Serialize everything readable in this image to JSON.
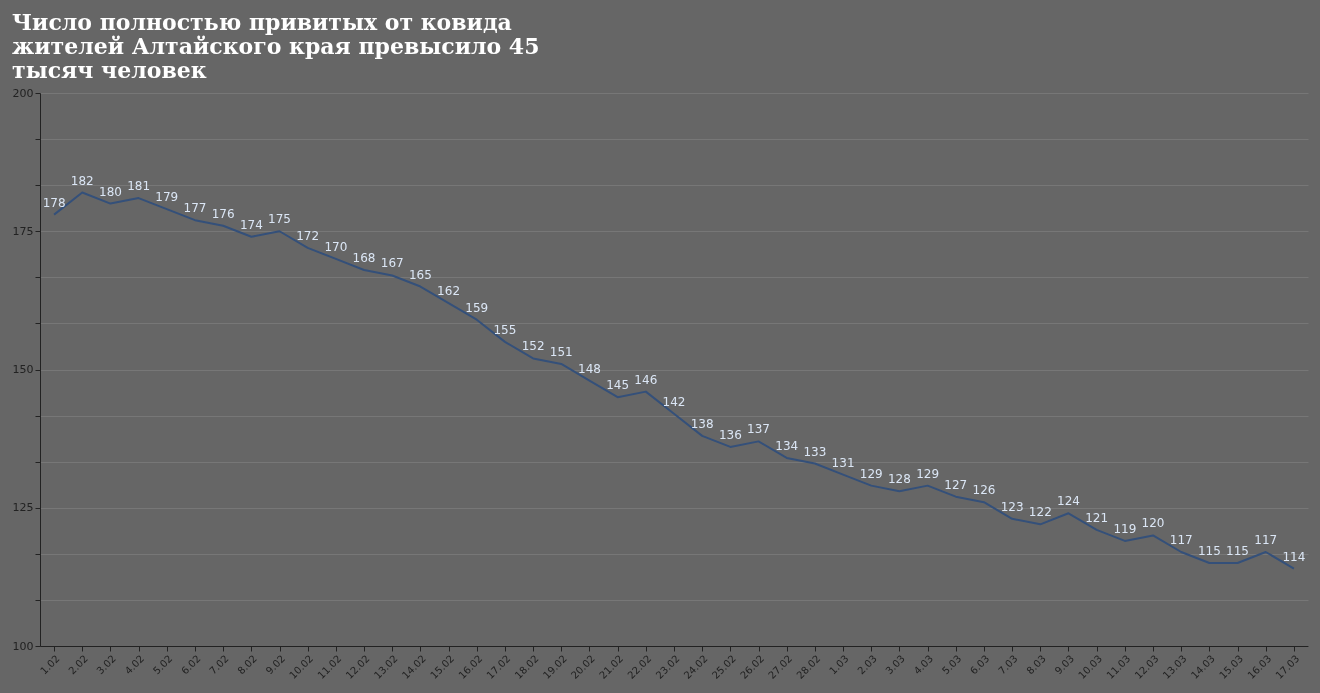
{
  "chart_data": {
    "type": "line",
    "title": [
      "Число полностью привитых от ковида",
      "жителей Алтайского края превысило 45",
      "тысяч человек"
    ],
    "categories": [
      "1.02",
      "2.02",
      "3.02",
      "4.02",
      "5.02",
      "6.02",
      "7.02",
      "8.02",
      "9.02",
      "10.02",
      "11.02",
      "12.02",
      "13.02",
      "14.02",
      "15.02",
      "16.02",
      "17.02",
      "18.02",
      "19.02",
      "20.02",
      "21.02",
      "22.02",
      "23.02",
      "24.02",
      "25.02",
      "26.02",
      "27.02",
      "28.02",
      "1.03",
      "2.03",
      "3.03",
      "4.03",
      "5.03",
      "6.03",
      "7.03",
      "8.03",
      "9.03",
      "10.03",
      "11.03",
      "12.03",
      "13.03",
      "14.03",
      "15.03",
      "16.03",
      "17.03"
    ],
    "series": [
      {
        "color": "#34507a",
        "values": [
          178,
          182,
          180,
          181,
          179,
          177,
          176,
          174,
          175,
          172,
          170,
          168,
          167,
          165,
          162,
          159,
          155,
          152,
          151,
          148,
          145,
          146,
          142,
          138,
          136,
          137,
          134,
          133,
          131,
          129,
          128,
          129,
          127,
          126,
          123,
          122,
          124,
          121,
          119,
          120,
          117,
          115,
          115,
          117,
          114
        ]
      }
    ],
    "ylim": [
      100,
      200
    ],
    "yticks": [
      100,
      {
        "value": 108.33,
        "label": null
      },
      {
        "value": 116.67,
        "label": null
      },
      125,
      {
        "value": 133.33,
        "label": null
      },
      {
        "value": 141.67,
        "label": null
      },
      150,
      {
        "value": 158.33,
        "label": null
      },
      {
        "value": 166.67,
        "label": null
      },
      175,
      {
        "value": 183.33,
        "label": null
      },
      {
        "value": 191.67,
        "label": null
      },
      200
    ],
    "grid": "y",
    "data_labels": true,
    "marker": "none",
    "line_style": "solid"
  }
}
